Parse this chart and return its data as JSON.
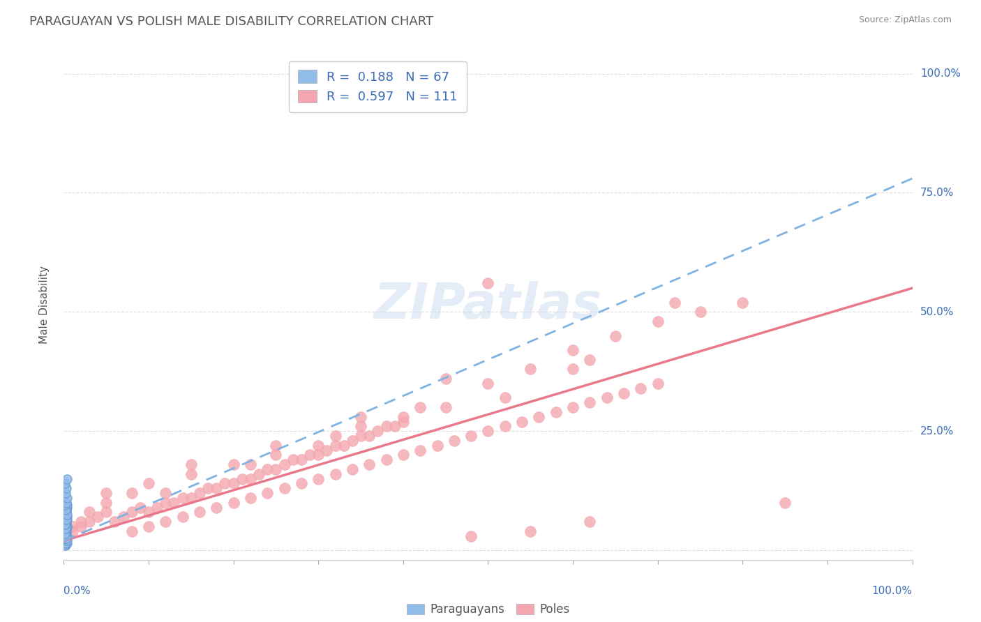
{
  "title": "PARAGUAYAN VS POLISH MALE DISABILITY CORRELATION CHART",
  "source": "Source: ZipAtlas.com",
  "ylabel": "Male Disability",
  "blue_color": "#92BDEA",
  "pink_color": "#F4A7B0",
  "blue_line_color": "#7EB2E0",
  "pink_line_color": "#E8788A",
  "title_color": "#555555",
  "legend_text_color": "#3B6CB5",
  "paraguayan_trendline": [
    [
      0.0,
      0.02
    ],
    [
      1.0,
      0.78
    ]
  ],
  "poles_trendline": [
    [
      0.0,
      0.02
    ],
    [
      1.0,
      0.55
    ]
  ],
  "xlim": [
    0,
    1.0
  ],
  "ylim": [
    -0.02,
    1.05
  ],
  "grid_color": "#DDDDDD",
  "background_color": "#FFFFFF",
  "paraguayans_scatter": [
    [
      0.002,
      0.02
    ],
    [
      0.003,
      0.015
    ],
    [
      0.002,
      0.01
    ],
    [
      0.004,
      0.05
    ],
    [
      0.003,
      0.08
    ],
    [
      0.002,
      0.06
    ],
    [
      0.003,
      0.03
    ],
    [
      0.002,
      0.035
    ],
    [
      0.001,
      0.01
    ],
    [
      0.003,
      0.02
    ],
    [
      0.002,
      0.025
    ],
    [
      0.004,
      0.015
    ],
    [
      0.002,
      0.04
    ],
    [
      0.003,
      0.05
    ],
    [
      0.002,
      0.06
    ],
    [
      0.001,
      0.02
    ],
    [
      0.003,
      0.03
    ],
    [
      0.004,
      0.025
    ],
    [
      0.002,
      0.015
    ],
    [
      0.003,
      0.04
    ],
    [
      0.002,
      0.05
    ],
    [
      0.003,
      0.035
    ],
    [
      0.004,
      0.02
    ],
    [
      0.002,
      0.06
    ],
    [
      0.001,
      0.025
    ],
    [
      0.003,
      0.045
    ],
    [
      0.002,
      0.055
    ],
    [
      0.004,
      0.03
    ],
    [
      0.003,
      0.065
    ],
    [
      0.002,
      0.07
    ],
    [
      0.001,
      0.04
    ],
    [
      0.003,
      0.08
    ],
    [
      0.002,
      0.045
    ],
    [
      0.004,
      0.05
    ],
    [
      0.003,
      0.055
    ],
    [
      0.001,
      0.06
    ],
    [
      0.002,
      0.03
    ],
    [
      0.003,
      0.025
    ],
    [
      0.004,
      0.065
    ],
    [
      0.002,
      0.07
    ],
    [
      0.003,
      0.075
    ],
    [
      0.001,
      0.08
    ],
    [
      0.002,
      0.085
    ],
    [
      0.004,
      0.09
    ],
    [
      0.003,
      0.095
    ],
    [
      0.002,
      0.1
    ],
    [
      0.001,
      0.035
    ],
    [
      0.003,
      0.06
    ],
    [
      0.004,
      0.07
    ],
    [
      0.002,
      0.075
    ],
    [
      0.003,
      0.08
    ],
    [
      0.001,
      0.085
    ],
    [
      0.002,
      0.09
    ],
    [
      0.004,
      0.095
    ],
    [
      0.003,
      0.05
    ],
    [
      0.002,
      0.045
    ],
    [
      0.001,
      0.055
    ],
    [
      0.003,
      0.065
    ],
    [
      0.004,
      0.075
    ],
    [
      0.002,
      0.085
    ],
    [
      0.001,
      0.095
    ],
    [
      0.003,
      0.1
    ],
    [
      0.004,
      0.11
    ],
    [
      0.002,
      0.12
    ],
    [
      0.003,
      0.13
    ],
    [
      0.001,
      0.14
    ],
    [
      0.004,
      0.15
    ]
  ],
  "poles_scatter": [
    [
      0.01,
      0.04
    ],
    [
      0.02,
      0.05
    ],
    [
      0.03,
      0.06
    ],
    [
      0.04,
      0.07
    ],
    [
      0.05,
      0.08
    ],
    [
      0.06,
      0.06
    ],
    [
      0.07,
      0.07
    ],
    [
      0.08,
      0.08
    ],
    [
      0.09,
      0.09
    ],
    [
      0.1,
      0.08
    ],
    [
      0.11,
      0.09
    ],
    [
      0.12,
      0.1
    ],
    [
      0.13,
      0.1
    ],
    [
      0.14,
      0.11
    ],
    [
      0.15,
      0.11
    ],
    [
      0.16,
      0.12
    ],
    [
      0.17,
      0.13
    ],
    [
      0.18,
      0.13
    ],
    [
      0.19,
      0.14
    ],
    [
      0.2,
      0.14
    ],
    [
      0.21,
      0.15
    ],
    [
      0.22,
      0.15
    ],
    [
      0.23,
      0.16
    ],
    [
      0.24,
      0.17
    ],
    [
      0.25,
      0.17
    ],
    [
      0.26,
      0.18
    ],
    [
      0.27,
      0.19
    ],
    [
      0.28,
      0.19
    ],
    [
      0.29,
      0.2
    ],
    [
      0.3,
      0.2
    ],
    [
      0.31,
      0.21
    ],
    [
      0.32,
      0.22
    ],
    [
      0.33,
      0.22
    ],
    [
      0.34,
      0.23
    ],
    [
      0.35,
      0.24
    ],
    [
      0.36,
      0.24
    ],
    [
      0.37,
      0.25
    ],
    [
      0.38,
      0.26
    ],
    [
      0.39,
      0.26
    ],
    [
      0.4,
      0.27
    ],
    [
      0.08,
      0.04
    ],
    [
      0.1,
      0.05
    ],
    [
      0.12,
      0.06
    ],
    [
      0.14,
      0.07
    ],
    [
      0.16,
      0.08
    ],
    [
      0.18,
      0.09
    ],
    [
      0.2,
      0.1
    ],
    [
      0.22,
      0.11
    ],
    [
      0.24,
      0.12
    ],
    [
      0.26,
      0.13
    ],
    [
      0.28,
      0.14
    ],
    [
      0.3,
      0.15
    ],
    [
      0.32,
      0.16
    ],
    [
      0.34,
      0.17
    ],
    [
      0.36,
      0.18
    ],
    [
      0.38,
      0.19
    ],
    [
      0.4,
      0.2
    ],
    [
      0.42,
      0.21
    ],
    [
      0.44,
      0.22
    ],
    [
      0.46,
      0.23
    ],
    [
      0.48,
      0.24
    ],
    [
      0.5,
      0.25
    ],
    [
      0.52,
      0.26
    ],
    [
      0.54,
      0.27
    ],
    [
      0.56,
      0.28
    ],
    [
      0.58,
      0.29
    ],
    [
      0.6,
      0.3
    ],
    [
      0.62,
      0.31
    ],
    [
      0.64,
      0.32
    ],
    [
      0.66,
      0.33
    ],
    [
      0.68,
      0.34
    ],
    [
      0.7,
      0.35
    ],
    [
      0.55,
      0.38
    ],
    [
      0.5,
      0.35
    ],
    [
      0.45,
      0.3
    ],
    [
      0.6,
      0.42
    ],
    [
      0.4,
      0.28
    ],
    [
      0.35,
      0.26
    ],
    [
      0.3,
      0.22
    ],
    [
      0.25,
      0.2
    ],
    [
      0.2,
      0.18
    ],
    [
      0.15,
      0.16
    ],
    [
      0.1,
      0.14
    ],
    [
      0.08,
      0.12
    ],
    [
      0.05,
      0.1
    ],
    [
      0.03,
      0.08
    ],
    [
      0.02,
      0.06
    ],
    [
      0.01,
      0.05
    ],
    [
      0.65,
      0.45
    ],
    [
      0.7,
      0.48
    ],
    [
      0.75,
      0.5
    ],
    [
      0.8,
      0.52
    ],
    [
      0.72,
      0.52
    ],
    [
      0.62,
      0.4
    ],
    [
      0.52,
      0.32
    ],
    [
      0.42,
      0.3
    ],
    [
      0.32,
      0.24
    ],
    [
      0.22,
      0.18
    ],
    [
      0.12,
      0.12
    ],
    [
      0.5,
      0.56
    ],
    [
      0.6,
      0.38
    ],
    [
      0.45,
      0.36
    ],
    [
      0.35,
      0.28
    ],
    [
      0.25,
      0.22
    ],
    [
      0.15,
      0.18
    ],
    [
      0.05,
      0.12
    ],
    [
      0.85,
      0.1
    ],
    [
      0.48,
      0.03
    ],
    [
      0.55,
      0.04
    ],
    [
      0.62,
      0.06
    ]
  ]
}
